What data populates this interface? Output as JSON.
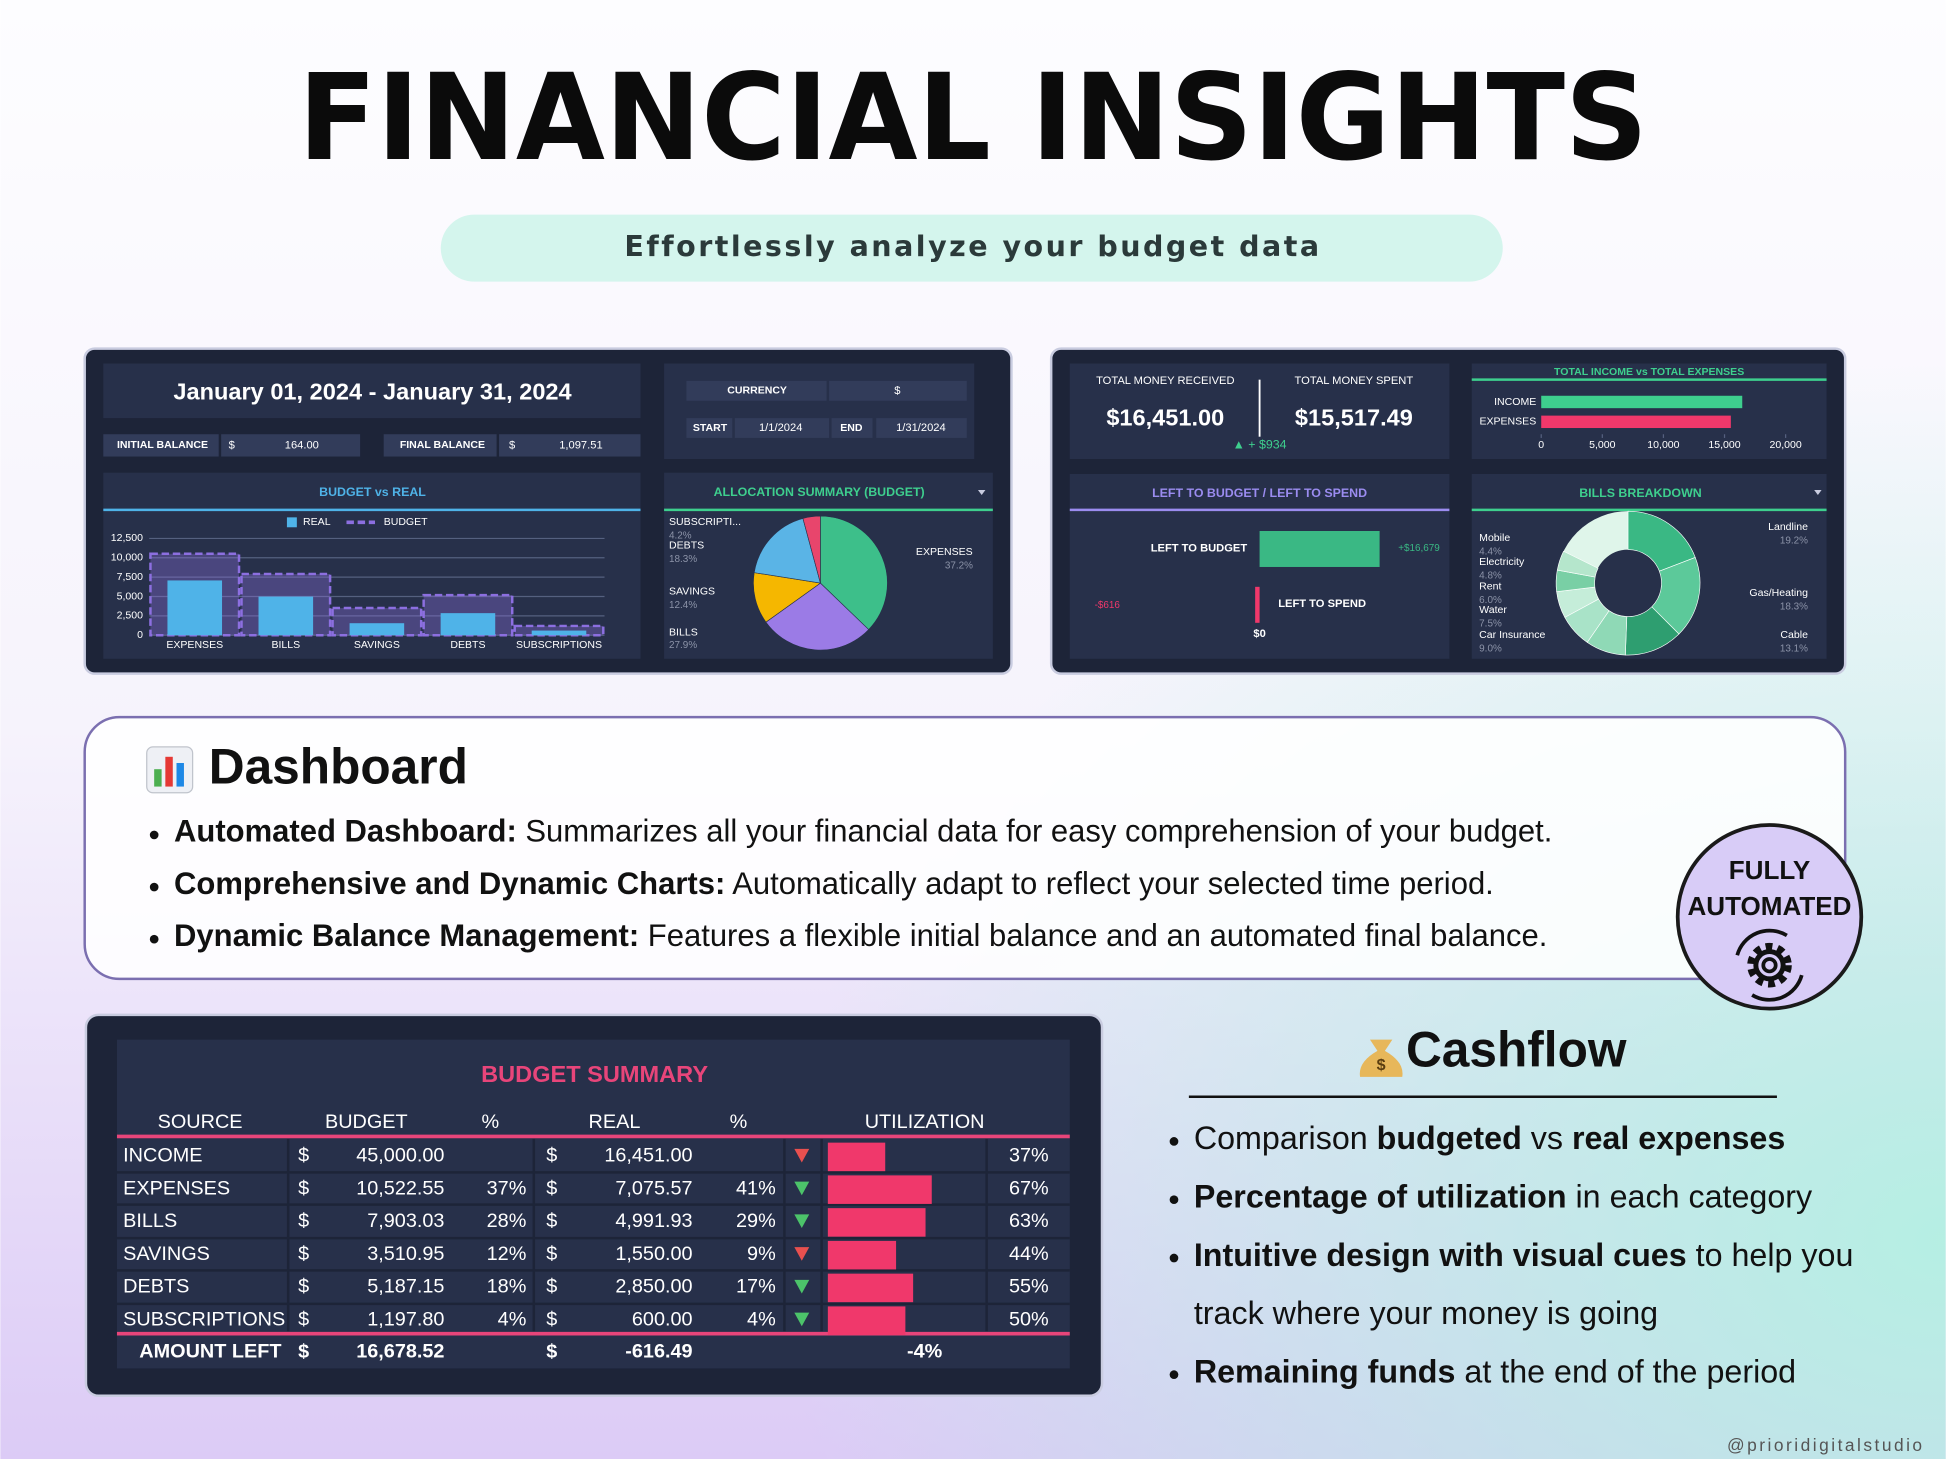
{
  "header": {
    "title": "FINANCIAL INSIGHTS",
    "subtitle": "Effortlessly analyze your budget data"
  },
  "period": {
    "date_range": "January 01, 2024 - January 31, 2024",
    "initial_balance_label": "INITIAL BALANCE",
    "initial_balance_currency": "$",
    "initial_balance": "164.00",
    "final_balance_label": "FINAL BALANCE",
    "final_balance_currency": "$",
    "final_balance": "1,097.51"
  },
  "settings": {
    "currency_label": "CURRENCY",
    "currency": "$",
    "start_label": "START",
    "start": "1/1/2024",
    "end_label": "END",
    "end": "1/31/2024"
  },
  "totals": {
    "received_label": "TOTAL MONEY RECEIVED",
    "received": "$16,451.00",
    "spent_label": "TOTAL MONEY SPENT",
    "spent": "$15,517.49",
    "difference": "▲ + $934"
  },
  "chart_data": [
    {
      "type": "bar",
      "title": "BUDGET vs REAL",
      "categories": [
        "EXPENSES",
        "BILLS",
        "SAVINGS",
        "DEBTS",
        "SUBSCRIPTIONS"
      ],
      "series": [
        {
          "name": "REAL",
          "color": "#4fb3e8",
          "values": [
            7075.57,
            4991.93,
            1550,
            2850,
            600
          ]
        },
        {
          "name": "BUDGET",
          "color": "#8c6fe0",
          "line_style": "dashed",
          "values": [
            10522.55,
            7903.03,
            3510.95,
            5187.15,
            1197.8
          ]
        }
      ],
      "ylim": [
        0,
        12500
      ],
      "yticks": [
        0,
        {
          "value": 2500,
          "label": "2,500"
        },
        {
          "value": 5000,
          "label": "5,000"
        },
        {
          "value": 7500,
          "label": "7,500"
        },
        {
          "value": 10000,
          "label": "10,000"
        },
        {
          "value": 12500,
          "label": "12,500"
        }
      ],
      "grid": true,
      "legend": "top"
    },
    {
      "type": "pie",
      "title": "ALLOCATION SUMMARY (BUDGET)",
      "categories": [
        "EXPENSES",
        "BILLS",
        "SAVINGS",
        "DEBTS",
        "SUBSCRIPTI..."
      ],
      "values": [
        37.2,
        27.9,
        12.4,
        18.3,
        4.2
      ],
      "value_labels": [
        "37.2%",
        "27.9%",
        "12.4%",
        "18.3%",
        "4.2%"
      ],
      "colors": [
        "#3dbf8a",
        "#9b7be6",
        "#f5b700",
        "#5ab4e6",
        "#e8456c"
      ]
    },
    {
      "type": "hbar",
      "title": "TOTAL INCOME vs TOTAL EXPENSES",
      "categories": [
        "INCOME",
        "EXPENSES"
      ],
      "values": [
        16451,
        15517.49
      ],
      "colors": [
        "#3ecf8e",
        "#f0386b"
      ],
      "xlim": [
        0,
        20000
      ],
      "xticks": [
        0,
        {
          "value": 5000,
          "label": "5,000"
        },
        {
          "value": 10000,
          "label": "10,000"
        },
        {
          "value": 15000,
          "label": "15,000"
        },
        {
          "value": 20000,
          "label": "20,000"
        }
      ]
    },
    {
      "type": "diverging",
      "title": "LEFT TO BUDGET / LEFT TO SPEND",
      "categories": [
        "LEFT TO BUDGET",
        "LEFT TO SPEND"
      ],
      "values": [
        16679,
        -616
      ],
      "value_labels": [
        "+$16,679",
        "-$616"
      ],
      "colors": [
        "#3ab884",
        "#f0386b"
      ],
      "xlim": [
        -25000,
        25000
      ],
      "xticks": [
        {
          "value": 0,
          "label": "$0"
        }
      ]
    },
    {
      "type": "donut",
      "title": "BILLS BREAKDOWN",
      "categories": [
        "Landline",
        "Gas/Heating",
        "Cable",
        "Car Insurance",
        "Water",
        "Rent",
        "Electricity",
        "Mobile"
      ],
      "values": [
        19.2,
        18.3,
        13.1,
        9.0,
        7.5,
        6.0,
        4.8,
        4.4
      ],
      "value_labels": [
        "19.2%",
        "18.3%",
        "13.1%",
        "9.0%",
        "7.5%",
        "6.0%",
        "4.8%",
        "4.4%"
      ],
      "colors": [
        "#3ab884",
        "#5cc99a",
        "#2e9e70",
        "#8fd9b6",
        "#a9e3c8",
        "#c5edd9",
        "#79cfa5",
        "#b5e6cc"
      ]
    }
  ],
  "dashboard": {
    "heading": "Dashboard",
    "bullets": [
      [
        [
          {
            "text": "Automated Dashboard:",
            "bold": true
          },
          {
            "text": " Summarizes all your financial data for easy comprehension of your budget."
          }
        ]
      ],
      [
        [
          {
            "text": "Comprehensive and Dynamic Charts:",
            "bold": true
          },
          {
            "text": " Automatically adapt to reflect your selected time period."
          }
        ]
      ],
      [
        [
          {
            "text": "Dynamic Balance Management:",
            "bold": true
          },
          {
            "text": " Features a flexible initial balance and an automated final balance."
          }
        ]
      ]
    ]
  },
  "badge": {
    "lines": [
      "FULLY",
      "AUTOMATED"
    ]
  },
  "budget_summary": {
    "title": "BUDGET SUMMARY",
    "columns": [
      "SOURCE",
      "BUDGET",
      "%",
      "REAL",
      "%",
      "UTILIZATION"
    ],
    "currency": "$",
    "rows": [
      [
        "INCOME",
        "45,000.00",
        null,
        "16,451.00",
        null
      ],
      [
        "EXPENSES",
        "10,522.55",
        "37%",
        "7,075.57",
        "41%"
      ],
      [
        "BILLS",
        "7,903.03",
        "28%",
        "4,991.93",
        "29%"
      ],
      [
        "SAVINGS",
        "3,510.95",
        "12%",
        "1,550.00",
        "9%"
      ],
      [
        "DEBTS",
        "5,187.15",
        "18%",
        "2,850.00",
        "17%"
      ],
      [
        "SUBSCRIPTIONS",
        "1,197.80",
        "4%",
        "600.00",
        "4%"
      ]
    ],
    "indicator_colors": [
      "#e8504f",
      "#4cc36a",
      "#4cc36a",
      "#e8504f",
      "#4cc36a",
      "#4cc36a"
    ],
    "utilization": {
      "values": [
        37,
        67,
        63,
        44,
        55,
        50
      ],
      "value_labels": [
        "37%",
        "67%",
        "63%",
        "44%",
        "55%",
        "50%"
      ],
      "xlim": [
        0,
        100
      ],
      "color": "#f0386b"
    },
    "total": {
      "label": "AMOUNT LEFT",
      "budget": "16,678.52",
      "real": "-616.49",
      "utilization": "-4%"
    }
  },
  "cashflow": {
    "heading": "Cashflow",
    "bullets": [
      [
        [
          {
            "text": "Comparison "
          },
          {
            "text": "budgeted",
            "bold": true
          },
          {
            "text": " vs "
          },
          {
            "text": "real expenses",
            "bold": true
          }
        ]
      ],
      [
        [
          {
            "text": "Percentage of utilization",
            "bold": true
          },
          {
            "text": " in each category"
          }
        ]
      ],
      [
        [
          {
            "text": "Intuitive design with visual cues",
            "bold": true
          },
          {
            "text": " to help you"
          }
        ],
        [
          {
            "text": "track where your money is going"
          }
        ]
      ],
      [
        [
          {
            "text": "Remaining funds",
            "bold": true
          },
          {
            "text": " at the end of the period"
          }
        ]
      ]
    ]
  },
  "footer": "@prioridigitalstudio"
}
